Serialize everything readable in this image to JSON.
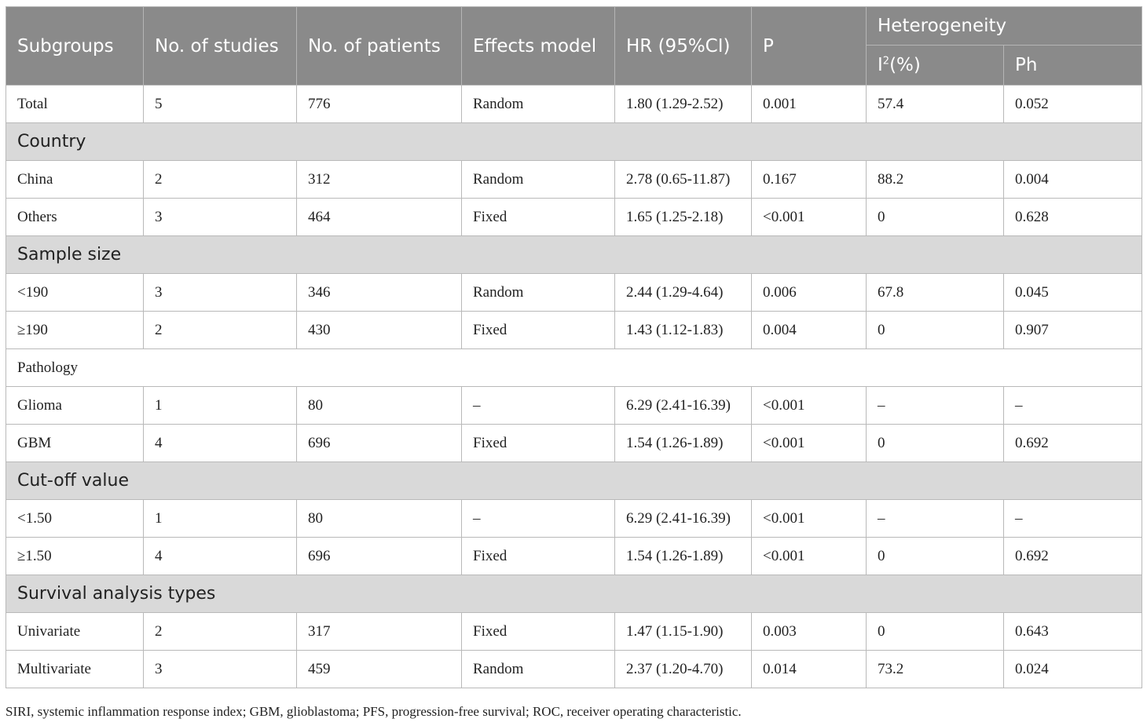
{
  "header": {
    "subgroups": "Subgroups",
    "studies": "No. of studies",
    "patients": "No. of patients",
    "model": "Effects model",
    "hr": "HR (95%CI)",
    "p": "P",
    "heterogeneity": "Heterogeneity",
    "i2_base": "I",
    "i2_sup": "2",
    "i2_suffix": "(%)",
    "ph": "Ph"
  },
  "rows": [
    {
      "type": "data",
      "cells": [
        "Total",
        "5",
        "776",
        "Random",
        "1.80 (1.29-2.52)",
        "0.001",
        "57.4",
        "0.052"
      ]
    },
    {
      "type": "section",
      "label": "Country"
    },
    {
      "type": "data",
      "cells": [
        "China",
        "2",
        "312",
        "Random",
        "2.78 (0.65-11.87)",
        "0.167",
        "88.2",
        "0.004"
      ]
    },
    {
      "type": "data",
      "cells": [
        "Others",
        "3",
        "464",
        "Fixed",
        "1.65 (1.25-2.18)",
        "<0.001",
        "0",
        "0.628"
      ]
    },
    {
      "type": "section",
      "label": "Sample size"
    },
    {
      "type": "data",
      "cells": [
        "<190",
        "3",
        "346",
        "Random",
        "2.44 (1.29-4.64)",
        "0.006",
        "67.8",
        "0.045"
      ]
    },
    {
      "type": "data",
      "cells": [
        "≥190",
        "2",
        "430",
        "Fixed",
        "1.43 (1.12-1.83)",
        "0.004",
        "0",
        "0.907"
      ]
    },
    {
      "type": "section-plain",
      "label": "Pathology"
    },
    {
      "type": "data",
      "cells": [
        "Glioma",
        "1",
        "80",
        "–",
        "6.29 (2.41-16.39)",
        "<0.001",
        "–",
        "–"
      ]
    },
    {
      "type": "data",
      "cells": [
        "GBM",
        "4",
        "696",
        "Fixed",
        "1.54 (1.26-1.89)",
        "<0.001",
        "0",
        "0.692"
      ]
    },
    {
      "type": "section",
      "label": "Cut-off value"
    },
    {
      "type": "data",
      "cells": [
        "<1.50",
        "1",
        "80",
        "–",
        "6.29 (2.41-16.39)",
        "<0.001",
        "–",
        "–"
      ]
    },
    {
      "type": "data",
      "cells": [
        "≥1.50",
        "4",
        "696",
        "Fixed",
        "1.54 (1.26-1.89)",
        "<0.001",
        "0",
        "0.692"
      ]
    },
    {
      "type": "section",
      "label": "Survival analysis types"
    },
    {
      "type": "data",
      "cells": [
        "Univariate",
        "2",
        "317",
        "Fixed",
        "1.47 (1.15-1.90)",
        "0.003",
        "0",
        "0.643"
      ]
    },
    {
      "type": "data",
      "cells": [
        "Multivariate",
        "3",
        "459",
        "Random",
        "2.37 (1.20-4.70)",
        "0.014",
        "73.2",
        "0.024"
      ]
    }
  ],
  "footnote": "SIRI, systemic inflammation response index; GBM, glioblastoma; PFS, progression-free survival; ROC, receiver operating characteristic."
}
